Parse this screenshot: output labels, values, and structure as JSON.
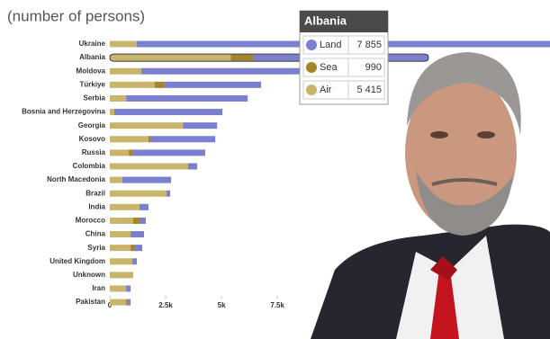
{
  "chart_data": {
    "type": "stacked-bar",
    "subtitle": "(number of persons)",
    "categories": [
      "Ukraine",
      "Albania",
      "Moldova",
      "Türkiye",
      "Serbia",
      "Bosnia and Herzegovina",
      "Georgia",
      "Kosovo",
      "Russia",
      "Colombia",
      "North Macedonia",
      "Brazil",
      "India",
      "Morocco",
      "China",
      "Syria",
      "United Kingdom",
      "Unknown",
      "Iran",
      "Pakistan"
    ],
    "series": [
      {
        "name": "Air",
        "color": "#c9b46c",
        "values": [
          1200,
          5415,
          1400,
          2000,
          730,
          200,
          3270,
          1730,
          850,
          3500,
          560,
          2540,
          1330,
          1050,
          930,
          930,
          1010,
          1050,
          730,
          730
        ],
        "value_labels": [
          null,
          "5 415",
          null,
          null,
          null,
          null,
          null,
          null,
          null,
          null,
          null,
          null,
          null,
          null,
          null,
          null,
          null,
          null,
          null,
          null
        ]
      },
      {
        "name": "Sea",
        "color": "#a3852c",
        "values": [
          0,
          990,
          0,
          450,
          0,
          0,
          0,
          120,
          160,
          0,
          0,
          0,
          0,
          320,
          0,
          160,
          0,
          0,
          0,
          80
        ],
        "value_labels": [
          null,
          "990",
          null,
          null,
          null,
          null,
          null,
          null,
          null,
          null,
          null,
          null,
          null,
          null,
          null,
          null,
          null,
          null,
          null,
          null
        ]
      },
      {
        "name": "Land",
        "color": "#7a7fd0",
        "values": [
          19000,
          7855,
          7870,
          4320,
          5440,
          4840,
          1530,
          2870,
          3260,
          410,
          2180,
          160,
          400,
          240,
          600,
          360,
          200,
          0,
          200,
          120
        ],
        "value_labels": [
          null,
          "7 855",
          null,
          null,
          null,
          null,
          null,
          null,
          null,
          null,
          null,
          null,
          null,
          null,
          null,
          null,
          null,
          null,
          null,
          null
        ]
      }
    ],
    "xlim": [
      0,
      19700
    ],
    "xticks": [
      0,
      {
        "value": 2500,
        "label": "2.5k"
      },
      {
        "value": 5000,
        "label": "5k"
      },
      {
        "value": 7500,
        "label": "7.5k"
      }
    ]
  }
}
